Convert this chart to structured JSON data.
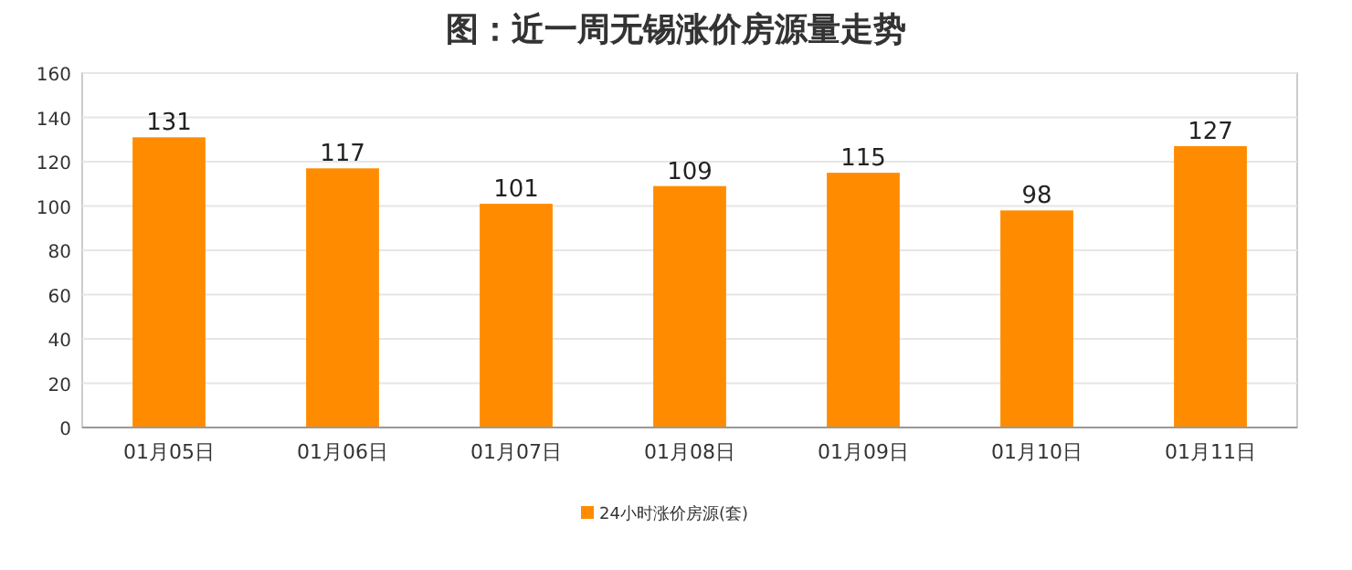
{
  "chart_data": {
    "type": "bar",
    "title": "图：近一周无锡涨价房源量走势",
    "categories": [
      "01月05日",
      "01月06日",
      "01月07日",
      "01月08日",
      "01月09日",
      "01月10日",
      "01月11日"
    ],
    "series": [
      {
        "name": "24小时涨价房源(套)",
        "color": "#ff8c00",
        "values": [
          131,
          117,
          101,
          109,
          115,
          98,
          127
        ]
      }
    ],
    "ylim": [
      0,
      160
    ],
    "yticks": [
      0,
      20,
      40,
      60,
      80,
      100,
      120,
      140,
      160
    ],
    "grid": "y",
    "legend": "bottom",
    "data_labels": true
  }
}
